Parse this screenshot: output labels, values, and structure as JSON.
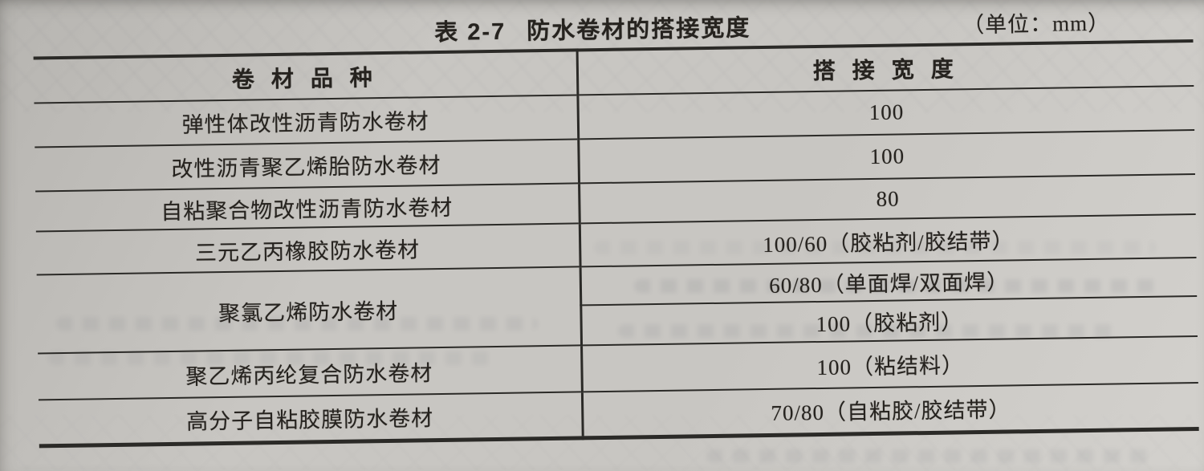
{
  "caption": {
    "table_no": "表 2-7",
    "title": "防水卷材的搭接宽度",
    "unit": "（单位：mm）"
  },
  "table": {
    "columns": [
      "卷 材 品 种",
      "搭 接 宽 度"
    ],
    "rows": [
      {
        "membrane": "弹性体改性沥青防水卷材",
        "lap_width": "100"
      },
      {
        "membrane": "改性沥青聚乙烯胎防水卷材",
        "lap_width": "100"
      },
      {
        "membrane": "自粘聚合物改性沥青防水卷材",
        "lap_width": "80"
      },
      {
        "membrane": "三元乙丙橡胶防水卷材",
        "lap_width": "100/60（胶粘剂/胶结带）"
      },
      {
        "membrane": "聚氯乙烯防水卷材",
        "lap_width": "60/80（单面焊/双面焊）",
        "lap_width_2": "100（胶粘剂）"
      },
      {
        "membrane": "聚乙烯丙纶复合防水卷材",
        "lap_width": "100（粘结料）"
      },
      {
        "membrane": "高分子自粘胶膜防水卷材",
        "lap_width": "70/80（自粘胶/胶结带）"
      }
    ]
  },
  "colors": {
    "paper": "#c8c6c2",
    "ink": "#26231f",
    "line": "#2b2a27"
  }
}
